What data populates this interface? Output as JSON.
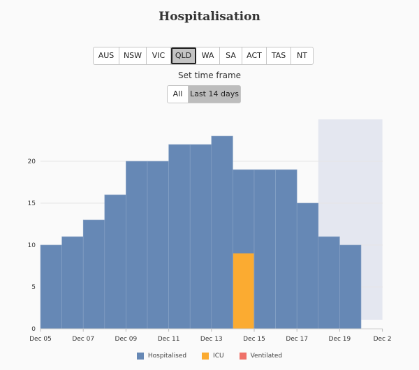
{
  "header": {
    "title": "Hospitalisation"
  },
  "states": {
    "items": [
      {
        "label": "AUS",
        "width": 37
      },
      {
        "label": "NSW",
        "width": 39
      },
      {
        "label": "VIC",
        "width": 35
      },
      {
        "label": "QLD",
        "width": 36,
        "active": true
      },
      {
        "label": "WA",
        "width": 34
      },
      {
        "label": "SA",
        "width": 32
      },
      {
        "label": "ACT",
        "width": 35
      },
      {
        "label": "TAS",
        "width": 35
      },
      {
        "label": "NT",
        "width": 31
      }
    ]
  },
  "timeframe": {
    "label": "Set time frame",
    "options": [
      {
        "label": "All",
        "active": false
      },
      {
        "label": "Last 14 days",
        "active": true
      }
    ]
  },
  "colors": {
    "hospitalised": "#6688b5",
    "icu": "#fbab31",
    "ventilated": "#ef7169",
    "forecast_band": "#e4e7f0"
  },
  "chart_data": {
    "type": "bar",
    "stacked": false,
    "categories": [
      "Dec 05",
      "Dec 06",
      "Dec 07",
      "Dec 08",
      "Dec 09",
      "Dec 10",
      "Dec 11",
      "Dec 12",
      "Dec 13",
      "Dec 14",
      "Dec 15",
      "Dec 16",
      "Dec 17",
      "Dec 18",
      "Dec 19"
    ],
    "series": [
      {
        "name": "Hospitalised",
        "values": [
          10,
          11,
          13,
          16,
          20,
          20,
          22,
          22,
          23,
          19,
          19,
          19,
          15,
          11,
          10
        ]
      },
      {
        "name": "ICU",
        "values": [
          0,
          0,
          0,
          0,
          0,
          0,
          0,
          0,
          0,
          9,
          0,
          0,
          0,
          0,
          0
        ]
      },
      {
        "name": "Ventilated",
        "values": [
          0,
          0,
          0,
          0,
          0,
          0,
          0,
          0,
          0,
          0,
          0,
          0,
          0,
          0,
          0
        ]
      }
    ],
    "x_ticks": [
      "Dec 05",
      "Dec 07",
      "Dec 09",
      "Dec 11",
      "Dec 13",
      "Dec 15",
      "Dec 17",
      "Dec 19",
      "Dec 2"
    ],
    "y_ticks": [
      0,
      5,
      10,
      15,
      20
    ],
    "ylim": [
      0,
      25
    ],
    "shaded_region": {
      "from_index": 13,
      "to_index": 16
    },
    "legend": [
      "Hospitalised",
      "ICU",
      "Ventilated"
    ],
    "legend_position": "bottom"
  }
}
